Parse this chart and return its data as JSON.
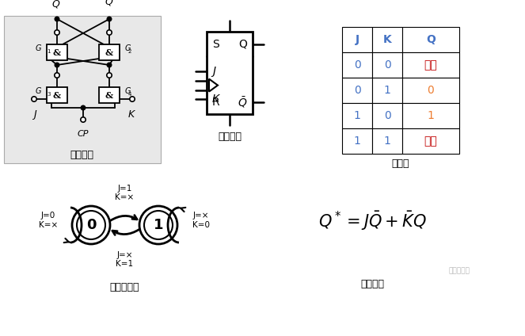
{
  "bg_color": "white",
  "circuit_bg": "#e8e8e8",
  "title_circuit": "电路结构",
  "title_symbol": "图形符号",
  "title_truth": "真値表",
  "title_state": "状态转换图",
  "title_char": "特性方程",
  "table_headers": [
    "J",
    "K",
    "Q"
  ],
  "table_data": [
    [
      "0",
      "0",
      "保持"
    ],
    [
      "0",
      "1",
      "0"
    ],
    [
      "1",
      "0",
      "1"
    ],
    [
      "1",
      "1",
      "翻转"
    ]
  ],
  "header_color": "#4472c4",
  "cell_jk_color": "#4472c4",
  "cell_q_num_color": "#ed7d31",
  "cell_q_text_color": "#c00000",
  "eq_color": "#000000",
  "state_bg": "white"
}
